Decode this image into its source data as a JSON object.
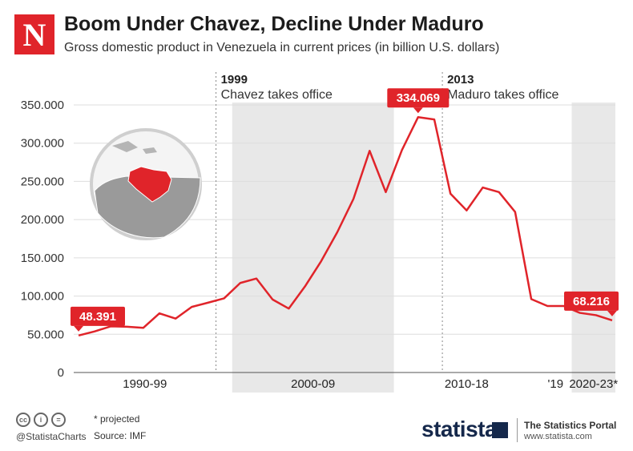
{
  "brand": {
    "logo_letter": "N",
    "logo_color": "#e0242a"
  },
  "chart_data": {
    "type": "line",
    "title": "Boom Under Chavez, Decline Under Maduro",
    "subtitle": "Gross domestic product in Venezuela in current prices (in billion U.S. dollars)",
    "xlabel": "",
    "ylabel": "",
    "ylim": [
      0,
      350000
    ],
    "yticks": [
      0,
      50000,
      100000,
      150000,
      200000,
      250000,
      300000,
      350000
    ],
    "ytick_labels": [
      "0",
      "50.000",
      "100.000",
      "150.000",
      "200.000",
      "250.000",
      "300.000",
      "350.000"
    ],
    "x": [
      1990,
      1991,
      1992,
      1993,
      1994,
      1995,
      1996,
      1997,
      1998,
      1999,
      2000,
      2001,
      2002,
      2003,
      2004,
      2005,
      2006,
      2007,
      2008,
      2009,
      2010,
      2011,
      2012,
      2013,
      2014,
      2015,
      2016,
      2017,
      2018,
      2019,
      2020,
      2021,
      2022,
      2023
    ],
    "xlim": [
      1989.7,
      2023.2
    ],
    "series": [
      {
        "name": "GDP",
        "color": "#e0242a",
        "values": [
          48391,
          53800,
          60400,
          59900,
          58400,
          77400,
          70500,
          85800,
          91300,
          97000,
          117100,
          122900,
          95500,
          83600,
          112500,
          145500,
          183500,
          227000,
          290000,
          236000,
          291000,
          334069,
          331000,
          234000,
          212000,
          242000,
          236000,
          210000,
          96000,
          87000,
          87000,
          78000,
          75000,
          68216
        ]
      }
    ],
    "value_labels": [
      {
        "text": "48.391",
        "index": 0
      },
      {
        "text": "334.069",
        "index": 21
      },
      {
        "text": "68.216",
        "index": 33
      }
    ],
    "periods": [
      {
        "label": "1990-99",
        "shaded": false,
        "from": 1989.7,
        "to": 1998.5
      },
      {
        "label": "2000-09",
        "shaded": true,
        "from": 1999.5,
        "to": 2009.5
      },
      {
        "label": "2010-18",
        "shaded": false,
        "from": 2009.5,
        "to": 2018.5
      },
      {
        "label": "'19",
        "shaded": false,
        "from": 2018.5,
        "to": 2020.5
      },
      {
        "label": "2020-23*",
        "shaded": true,
        "from": 2020.5,
        "to": 2023.2
      }
    ],
    "annotations": [
      {
        "x": 1998.5,
        "year": "1999",
        "text": "Chavez takes office"
      },
      {
        "x": 2012.5,
        "year": "2013",
        "text": "Maduro takes office"
      }
    ],
    "colors": {
      "shade": "#e8e8e8",
      "grid": "#dddddd",
      "line": "#e0242a"
    }
  },
  "footer": {
    "cc_icons": [
      "cc",
      "i",
      "="
    ],
    "handle": "@StatistaCharts",
    "note": "* projected",
    "source": "Source: IMF",
    "statista": "statista",
    "portal": "The Statistics Portal",
    "portal_url": "www.statista.com",
    "brand_color": "#15284b"
  }
}
